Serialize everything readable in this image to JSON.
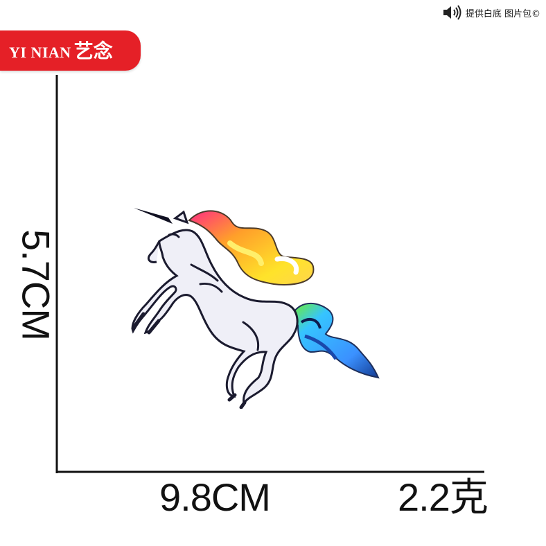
{
  "top_note": {
    "icon": "speaker-icon",
    "text": "提供白底 图片包©"
  },
  "brand": {
    "latin": "YI NIAN",
    "cjk": "艺念",
    "color": "#e52027"
  },
  "measurements": {
    "height": "5.7CM",
    "width": "9.8CM",
    "weight": "2.2克"
  },
  "product": {
    "icon": "unicorn-patch"
  }
}
